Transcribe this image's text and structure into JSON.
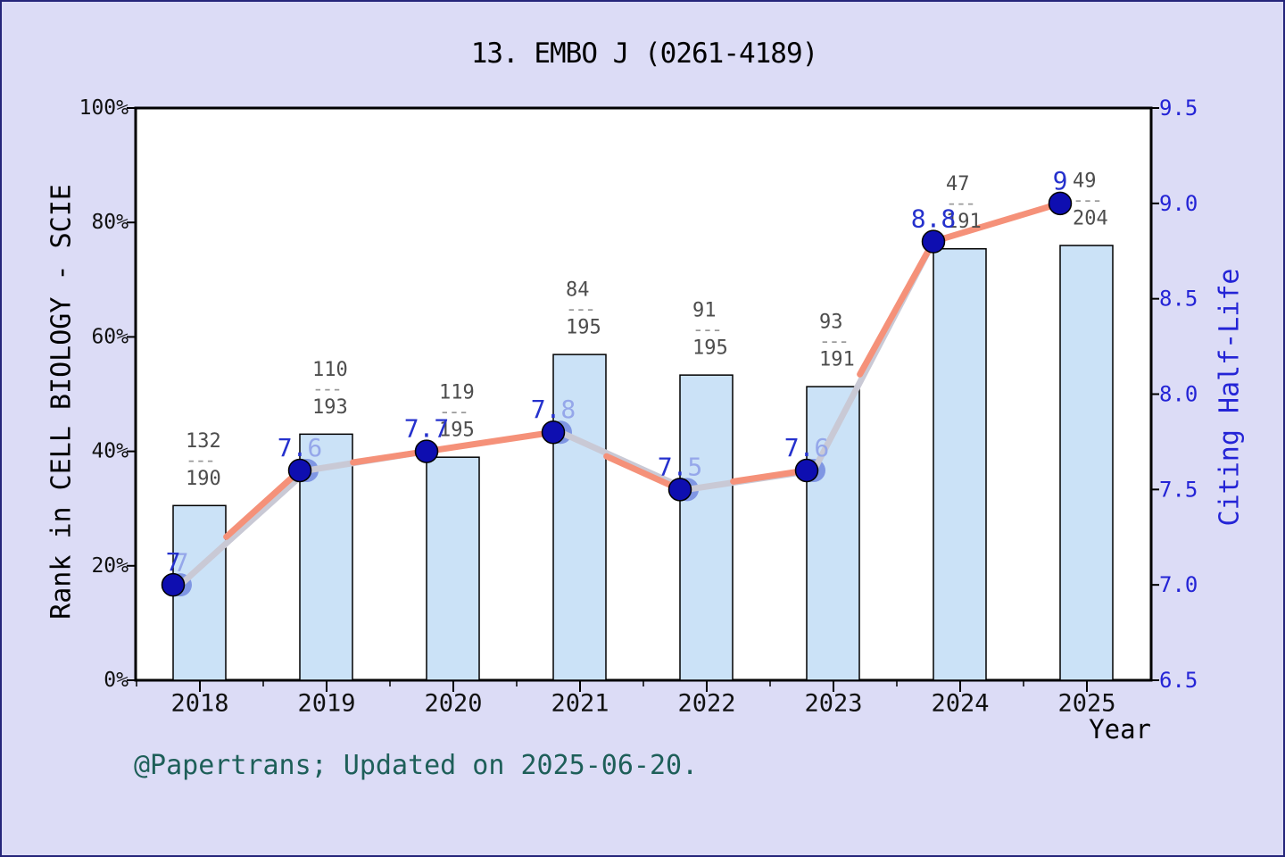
{
  "title": "13. EMBO J (0261-4189)",
  "footer": "@Papertrans; Updated on 2025-06-20.",
  "chart_data": {
    "type": "bar+line combo",
    "xlabel": "Year",
    "categories": [
      "2018",
      "2019",
      "2020",
      "2021",
      "2022",
      "2023",
      "2024",
      "2025"
    ],
    "left_axis": {
      "label": "Rank in CELL BIOLOGY - SCIE",
      "tick_percents": [
        0,
        20,
        40,
        60,
        80,
        100
      ],
      "range": [
        0,
        100
      ],
      "unit": "%"
    },
    "right_axis": {
      "label": "Citing Half-Life",
      "ticks": [
        6.5,
        7.0,
        7.5,
        8.0,
        8.5,
        9.0,
        9.5
      ],
      "range": [
        6.5,
        9.5
      ]
    },
    "series": [
      {
        "name": "Rank in CELL BIOLOGY - SCIE (rank/total shown as fraction)",
        "type": "bar",
        "values_percent": [
          30.5,
          43.0,
          39.0,
          56.9,
          53.3,
          51.3,
          75.4,
          76.0
        ]
      },
      {
        "name": "Citing Half-Life",
        "type": "line",
        "values": [
          7,
          7.6,
          7.7,
          7.8,
          7.5,
          7.6,
          8.8,
          9
        ]
      }
    ],
    "points": [
      {
        "year": "2018",
        "num": 132,
        "den": 190,
        "halflife": 7,
        "label_dark": "7",
        "label_light": "",
        "ghost": "7",
        "double": true
      },
      {
        "year": "2019",
        "num": 110,
        "den": 193,
        "halflife": 7.6,
        "label_dark": "7.",
        "label_light": "6",
        "ghost": "",
        "double": true
      },
      {
        "year": "2020",
        "num": 119,
        "den": 195,
        "halflife": 7.7,
        "label_dark": "7.7",
        "label_light": "",
        "ghost": "",
        "double": false
      },
      {
        "year": "2021",
        "num": 84,
        "den": 195,
        "halflife": 7.8,
        "label_dark": "7.",
        "label_light": "8",
        "ghost": "",
        "double": true
      },
      {
        "year": "2022",
        "num": 91,
        "den": 195,
        "halflife": 7.5,
        "label_dark": "7.",
        "label_light": "5",
        "ghost": "",
        "double": true
      },
      {
        "year": "2023",
        "num": 93,
        "den": 191,
        "halflife": 7.6,
        "label_dark": "7.",
        "label_light": "6",
        "ghost": "",
        "double": true
      },
      {
        "year": "2024",
        "num": 47,
        "den": 191,
        "halflife": 8.8,
        "label_dark": "8.8",
        "label_light": "",
        "ghost": "",
        "double": false
      },
      {
        "year": "2025",
        "num": 49,
        "den": 204,
        "halflife": 9,
        "label_dark": "9",
        "label_light": "",
        "ghost": "",
        "double": false
      }
    ],
    "legend": "none",
    "grid": "off"
  },
  "colors": {
    "background": "#dcdcf6",
    "border": "#25257a",
    "plot_bg": "#ffffff",
    "frame": "#000000",
    "bar_fill": "#cbe2f7",
    "bar_edge": "#000000",
    "line": "#f59179",
    "line_shadow": "#c9c9d5",
    "marker": "#0e0eb0",
    "marker_edge": "#000000",
    "marker_ghost": "#7f96e3",
    "value_label": "#2531cd",
    "value_label_light": "#95a7ea",
    "fraction": "#4d4d4d",
    "fraction_dash": "#999999",
    "right_axis_text": "#2424d6",
    "axis_text": "#111111",
    "footer_text": "#1e5f59"
  }
}
